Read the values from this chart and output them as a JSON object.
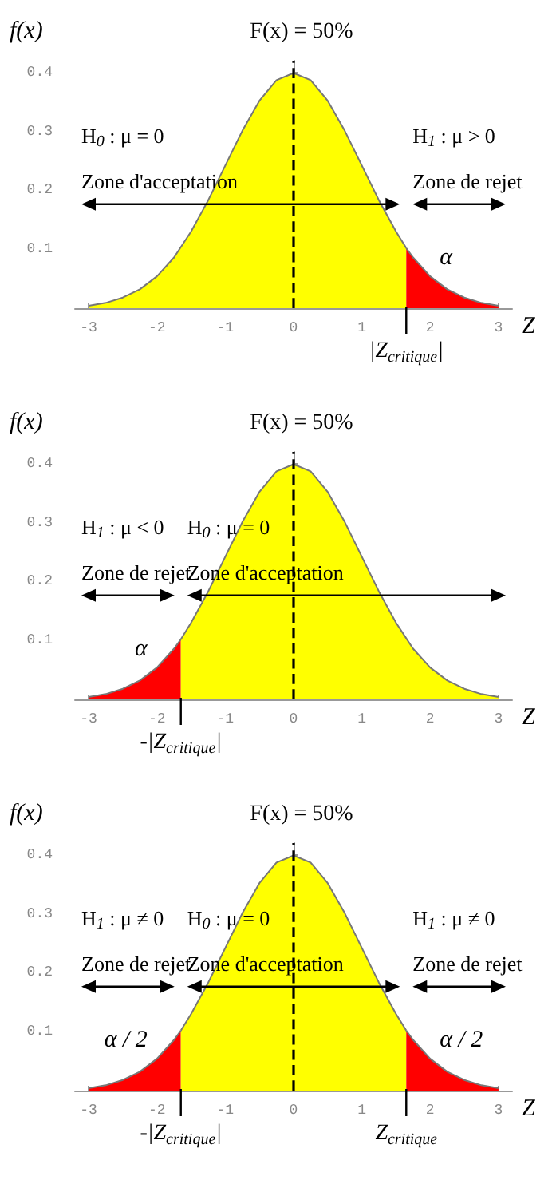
{
  "chart_data": [
    {
      "type": "area",
      "title": "F(x) = 50%",
      "xlabel": "Z",
      "ylabel": "f(x)",
      "xlim": [
        -3.2,
        3.2
      ],
      "ylim": [
        0,
        0.42
      ],
      "xticks": [
        -3,
        -2,
        -1,
        0,
        1,
        2,
        3
      ],
      "yticks": [
        0.1,
        0.2,
        0.3,
        0.4
      ],
      "grid": false,
      "series": [
        {
          "color": "#ffff00",
          "x": [
            -3,
            -2.75,
            -2.5,
            -2.25,
            -2,
            -1.75,
            -1.5,
            -1.25,
            -1,
            -0.75,
            -0.5,
            -0.25,
            0,
            0.25,
            0.5,
            0.75,
            1,
            1.25,
            1.5,
            1.65
          ],
          "values": [
            0.004,
            0.009,
            0.018,
            0.032,
            0.054,
            0.086,
            0.13,
            0.183,
            0.242,
            0.301,
            0.352,
            0.387,
            0.399,
            0.387,
            0.352,
            0.301,
            0.242,
            0.183,
            0.13,
            0.102
          ]
        },
        {
          "color": "#ff0000",
          "x": [
            1.65,
            1.75,
            2,
            2.25,
            2.5,
            2.75,
            3
          ],
          "values": [
            0.102,
            0.086,
            0.054,
            0.032,
            0.018,
            0.009,
            0.004
          ]
        }
      ],
      "ref_lines": [
        {
          "axis": "x",
          "value": 0,
          "line_style": "dashed"
        },
        {
          "axis": "x",
          "value": 1.65,
          "label": "|Z$_{critique}$|",
          "line_style": "solid"
        }
      ],
      "annotations": [
        "H$_{0}$ : μ = 0",
        "Zone d'acceptation",
        "H$_{1}$ : μ > 0",
        "Zone de rejet",
        "α"
      ]
    },
    {
      "type": "area",
      "title": "F(x) = 50%",
      "xlabel": "Z",
      "ylabel": "f(x)",
      "xlim": [
        -3.2,
        3.2
      ],
      "ylim": [
        0,
        0.42
      ],
      "xticks": [
        -3,
        -2,
        -1,
        0,
        1,
        2,
        3
      ],
      "yticks": [
        0.1,
        0.2,
        0.3,
        0.4
      ],
      "grid": false,
      "series": [
        {
          "color": "#ff0000",
          "x": [
            -3,
            -2.75,
            -2.5,
            -2.25,
            -2,
            -1.75,
            -1.65
          ],
          "values": [
            0.004,
            0.009,
            0.018,
            0.032,
            0.054,
            0.086,
            0.102
          ]
        },
        {
          "color": "#ffff00",
          "x": [
            -1.65,
            -1.5,
            -1.25,
            -1,
            -0.75,
            -0.5,
            -0.25,
            0,
            0.25,
            0.5,
            0.75,
            1,
            1.25,
            1.5,
            1.75,
            2,
            2.25,
            2.5,
            2.75,
            3
          ],
          "values": [
            0.102,
            0.13,
            0.183,
            0.242,
            0.301,
            0.352,
            0.387,
            0.399,
            0.387,
            0.352,
            0.301,
            0.242,
            0.183,
            0.13,
            0.086,
            0.054,
            0.032,
            0.018,
            0.009,
            0.004
          ]
        }
      ],
      "ref_lines": [
        {
          "axis": "x",
          "value": 0,
          "line_style": "dashed"
        },
        {
          "axis": "x",
          "value": -1.65,
          "label": "-|Z$_{critique}$|",
          "line_style": "solid"
        }
      ],
      "annotations": [
        "H$_{1}$ : μ < 0",
        "Zone de rejet",
        "H$_{0}$ : μ = 0",
        "Zone d'acceptation",
        "α"
      ]
    },
    {
      "type": "area",
      "title": "F(x) = 50%",
      "xlabel": "Z",
      "ylabel": "f(x)",
      "xlim": [
        -3.2,
        3.2
      ],
      "ylim": [
        0,
        0.42
      ],
      "xticks": [
        -3,
        -2,
        -1,
        0,
        1,
        2,
        3
      ],
      "yticks": [
        0.1,
        0.2,
        0.3,
        0.4
      ],
      "grid": false,
      "series": [
        {
          "color": "#ff0000",
          "x": [
            -3,
            -2.75,
            -2.5,
            -2.25,
            -2,
            -1.75,
            -1.65
          ],
          "values": [
            0.004,
            0.009,
            0.018,
            0.032,
            0.054,
            0.086,
            0.102
          ]
        },
        {
          "color": "#ffff00",
          "x": [
            -1.65,
            -1.5,
            -1.25,
            -1,
            -0.75,
            -0.5,
            -0.25,
            0,
            0.25,
            0.5,
            0.75,
            1,
            1.25,
            1.5,
            1.65
          ],
          "values": [
            0.102,
            0.13,
            0.183,
            0.242,
            0.301,
            0.352,
            0.387,
            0.399,
            0.387,
            0.352,
            0.301,
            0.242,
            0.183,
            0.13,
            0.102
          ]
        },
        {
          "color": "#ff0000",
          "x": [
            1.65,
            1.75,
            2,
            2.25,
            2.5,
            2.75,
            3
          ],
          "values": [
            0.102,
            0.086,
            0.054,
            0.032,
            0.018,
            0.009,
            0.004
          ]
        }
      ],
      "ref_lines": [
        {
          "axis": "x",
          "value": 0,
          "line_style": "dashed"
        },
        {
          "axis": "x",
          "value": -1.65,
          "label": "-|Z$_{critique}$|",
          "line_style": "solid"
        },
        {
          "axis": "x",
          "value": 1.65,
          "label": "Z$_{critique}$",
          "line_style": "solid"
        }
      ],
      "annotations": [
        "H$_{1}$ : μ ≠ 0",
        "Zone de rejet",
        "H$_{0}$ : μ = 0",
        "Zone d'acceptation",
        "H$_{1}$ : μ ≠ 0",
        "Zone de rejet",
        "α / 2",
        "α / 2"
      ]
    }
  ]
}
